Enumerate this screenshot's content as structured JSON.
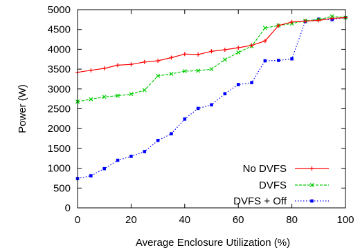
{
  "chart_data": {
    "type": "line",
    "xlabel": "Average Enclosure Utilization (%)",
    "ylabel": "Power (W)",
    "xlim": [
      0,
      100
    ],
    "ylim": [
      0,
      5000
    ],
    "xticks": [
      "0",
      "20",
      "40",
      "60",
      "80",
      "100"
    ],
    "yticks": [
      "0",
      "500",
      "1000",
      "1500",
      "2000",
      "2500",
      "3000",
      "3500",
      "4000",
      "4500",
      "5000"
    ],
    "grid": false,
    "legend_position": "bottom-right",
    "x": [
      0,
      5,
      10,
      15,
      20,
      25,
      30,
      35,
      40,
      45,
      50,
      55,
      60,
      65,
      70,
      75,
      80,
      85,
      90,
      95,
      100
    ],
    "series": [
      {
        "name": "No DVFS",
        "color": "#ff0000",
        "line_style": "solid",
        "marker": "plus",
        "values": [
          3420,
          3470,
          3520,
          3600,
          3620,
          3680,
          3710,
          3790,
          3880,
          3870,
          3950,
          3990,
          4040,
          4100,
          4210,
          4600,
          4690,
          4710,
          4730,
          4780,
          4800
        ]
      },
      {
        "name": "DVFS",
        "color": "#00cc00",
        "line_style": "dashed",
        "marker": "x",
        "values": [
          2680,
          2740,
          2800,
          2830,
          2870,
          2970,
          3330,
          3380,
          3450,
          3460,
          3500,
          3740,
          3920,
          4080,
          4540,
          4600,
          4650,
          4720,
          4750,
          4830,
          4800
        ]
      },
      {
        "name": "DVFS + Off",
        "color": "#0000ff",
        "line_style": "dotted",
        "marker": "square",
        "values": [
          740,
          810,
          990,
          1200,
          1300,
          1420,
          1700,
          1870,
          2240,
          2510,
          2600,
          2880,
          3110,
          3160,
          3710,
          3720,
          3760,
          4700,
          4760,
          4750,
          4800
        ]
      }
    ]
  }
}
